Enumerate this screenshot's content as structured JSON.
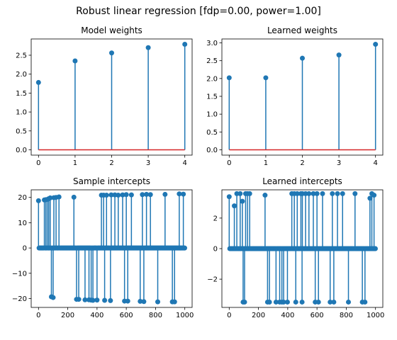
{
  "figure": {
    "title": "Robust linear regression [fdp=0.00, power=1.00]"
  },
  "colors": {
    "stem": "#1f77b4",
    "baseline": "#d62728",
    "axis": "#000000"
  },
  "chart_data": [
    {
      "type": "stem",
      "title": "Model weights",
      "xlabel": "",
      "ylabel": "",
      "x": [
        0,
        1,
        2,
        3,
        4
      ],
      "values": [
        1.78,
        2.35,
        2.56,
        2.7,
        2.79
      ],
      "xlim": [
        -0.2,
        4.2
      ],
      "ylim": [
        -0.14,
        2.93
      ],
      "xticks": [
        0,
        1,
        2,
        3,
        4
      ],
      "yticks": [
        0.0,
        0.5,
        1.0,
        1.5,
        2.0,
        2.5
      ],
      "ytick_labels": [
        "0.0",
        "0.5",
        "1.0",
        "1.5",
        "2.0",
        "2.5"
      ],
      "grid": false
    },
    {
      "type": "stem",
      "title": "Learned weights",
      "xlabel": "",
      "ylabel": "",
      "x": [
        0,
        1,
        2,
        3,
        4
      ],
      "values": [
        2.02,
        2.02,
        2.57,
        2.66,
        2.96
      ],
      "xlim": [
        -0.2,
        4.2
      ],
      "ylim": [
        -0.15,
        3.11
      ],
      "xticks": [
        0,
        1,
        2,
        3,
        4
      ],
      "yticks": [
        0.0,
        0.5,
        1.0,
        1.5,
        2.0,
        2.5,
        3.0
      ],
      "ytick_labels": [
        "0.0",
        "0.5",
        "1.0",
        "1.5",
        "2.0",
        "2.5",
        "3.0"
      ],
      "grid": false
    },
    {
      "type": "stem",
      "title": "Sample intercepts",
      "xlabel": "",
      "ylabel": "",
      "n_points": 1000,
      "nonzero": [
        [
          0,
          18.7
        ],
        [
          40,
          19.0
        ],
        [
          50,
          19.1
        ],
        [
          60,
          19.2
        ],
        [
          70,
          19.5
        ],
        [
          80,
          19.8
        ],
        [
          88,
          -19.3
        ],
        [
          100,
          -19.6
        ],
        [
          105,
          19.9
        ],
        [
          120,
          20.0
        ],
        [
          140,
          20.2
        ],
        [
          242,
          20.1
        ],
        [
          260,
          -20.3
        ],
        [
          275,
          -20.3
        ],
        [
          318,
          -20.5
        ],
        [
          345,
          -20.5
        ],
        [
          360,
          -20.6
        ],
        [
          372,
          -20.7
        ],
        [
          400,
          -20.6
        ],
        [
          430,
          20.9
        ],
        [
          445,
          20.9
        ],
        [
          452,
          -20.7
        ],
        [
          465,
          20.9
        ],
        [
          492,
          -20.8
        ],
        [
          497,
          21.0
        ],
        [
          522,
          21.0
        ],
        [
          545,
          20.9
        ],
        [
          575,
          21.0
        ],
        [
          588,
          -21.0
        ],
        [
          600,
          21.1
        ],
        [
          610,
          -21.0
        ],
        [
          635,
          21.0
        ],
        [
          695,
          -21.1
        ],
        [
          710,
          21.1
        ],
        [
          720,
          -21.2
        ],
        [
          738,
          21.2
        ],
        [
          765,
          21.1
        ],
        [
          815,
          -21.3
        ],
        [
          865,
          21.2
        ],
        [
          915,
          -21.3
        ],
        [
          930,
          -21.3
        ],
        [
          962,
          21.4
        ],
        [
          990,
          21.3
        ]
      ],
      "xlim": [
        -50,
        1050
      ],
      "ylim": [
        -23.5,
        23.0
      ],
      "xticks": [
        0,
        200,
        400,
        600,
        800,
        1000
      ],
      "yticks": [
        -20,
        -10,
        0,
        10,
        20
      ],
      "ytick_labels": [
        "−20",
        "−10",
        "0",
        "10",
        "20"
      ],
      "grid": false
    },
    {
      "type": "stem",
      "title": "Learned intercepts",
      "xlabel": "",
      "ylabel": "",
      "n_points": 1000,
      "nonzero": [
        [
          0,
          3.4
        ],
        [
          35,
          2.8
        ],
        [
          52,
          3.6
        ],
        [
          75,
          3.6
        ],
        [
          90,
          3.1
        ],
        [
          95,
          -3.5
        ],
        [
          105,
          -3.5
        ],
        [
          112,
          3.6
        ],
        [
          125,
          3.6
        ],
        [
          140,
          3.6
        ],
        [
          245,
          3.5
        ],
        [
          262,
          -3.5
        ],
        [
          275,
          -3.5
        ],
        [
          320,
          -3.5
        ],
        [
          345,
          -3.5
        ],
        [
          360,
          -3.5
        ],
        [
          372,
          -3.5
        ],
        [
          398,
          -3.5
        ],
        [
          428,
          3.6
        ],
        [
          445,
          3.6
        ],
        [
          455,
          -3.5
        ],
        [
          465,
          3.6
        ],
        [
          490,
          3.6
        ],
        [
          498,
          -3.5
        ],
        [
          500,
          3.6
        ],
        [
          522,
          3.6
        ],
        [
          545,
          3.6
        ],
        [
          575,
          3.6
        ],
        [
          588,
          -3.5
        ],
        [
          600,
          3.6
        ],
        [
          610,
          -3.5
        ],
        [
          638,
          3.6
        ],
        [
          690,
          -3.5
        ],
        [
          705,
          3.6
        ],
        [
          715,
          -3.5
        ],
        [
          740,
          3.6
        ],
        [
          775,
          3.6
        ],
        [
          815,
          -3.5
        ],
        [
          860,
          3.6
        ],
        [
          910,
          -3.5
        ],
        [
          928,
          -3.5
        ],
        [
          962,
          3.3
        ],
        [
          975,
          3.6
        ],
        [
          990,
          3.5
        ]
      ],
      "xlim": [
        -50,
        1050
      ],
      "ylim": [
        -3.85,
        3.85
      ],
      "xticks": [
        0,
        200,
        400,
        600,
        800,
        1000
      ],
      "yticks": [
        -2,
        0,
        2
      ],
      "ytick_labels": [
        "−2",
        "0",
        "2"
      ],
      "grid": false
    }
  ]
}
